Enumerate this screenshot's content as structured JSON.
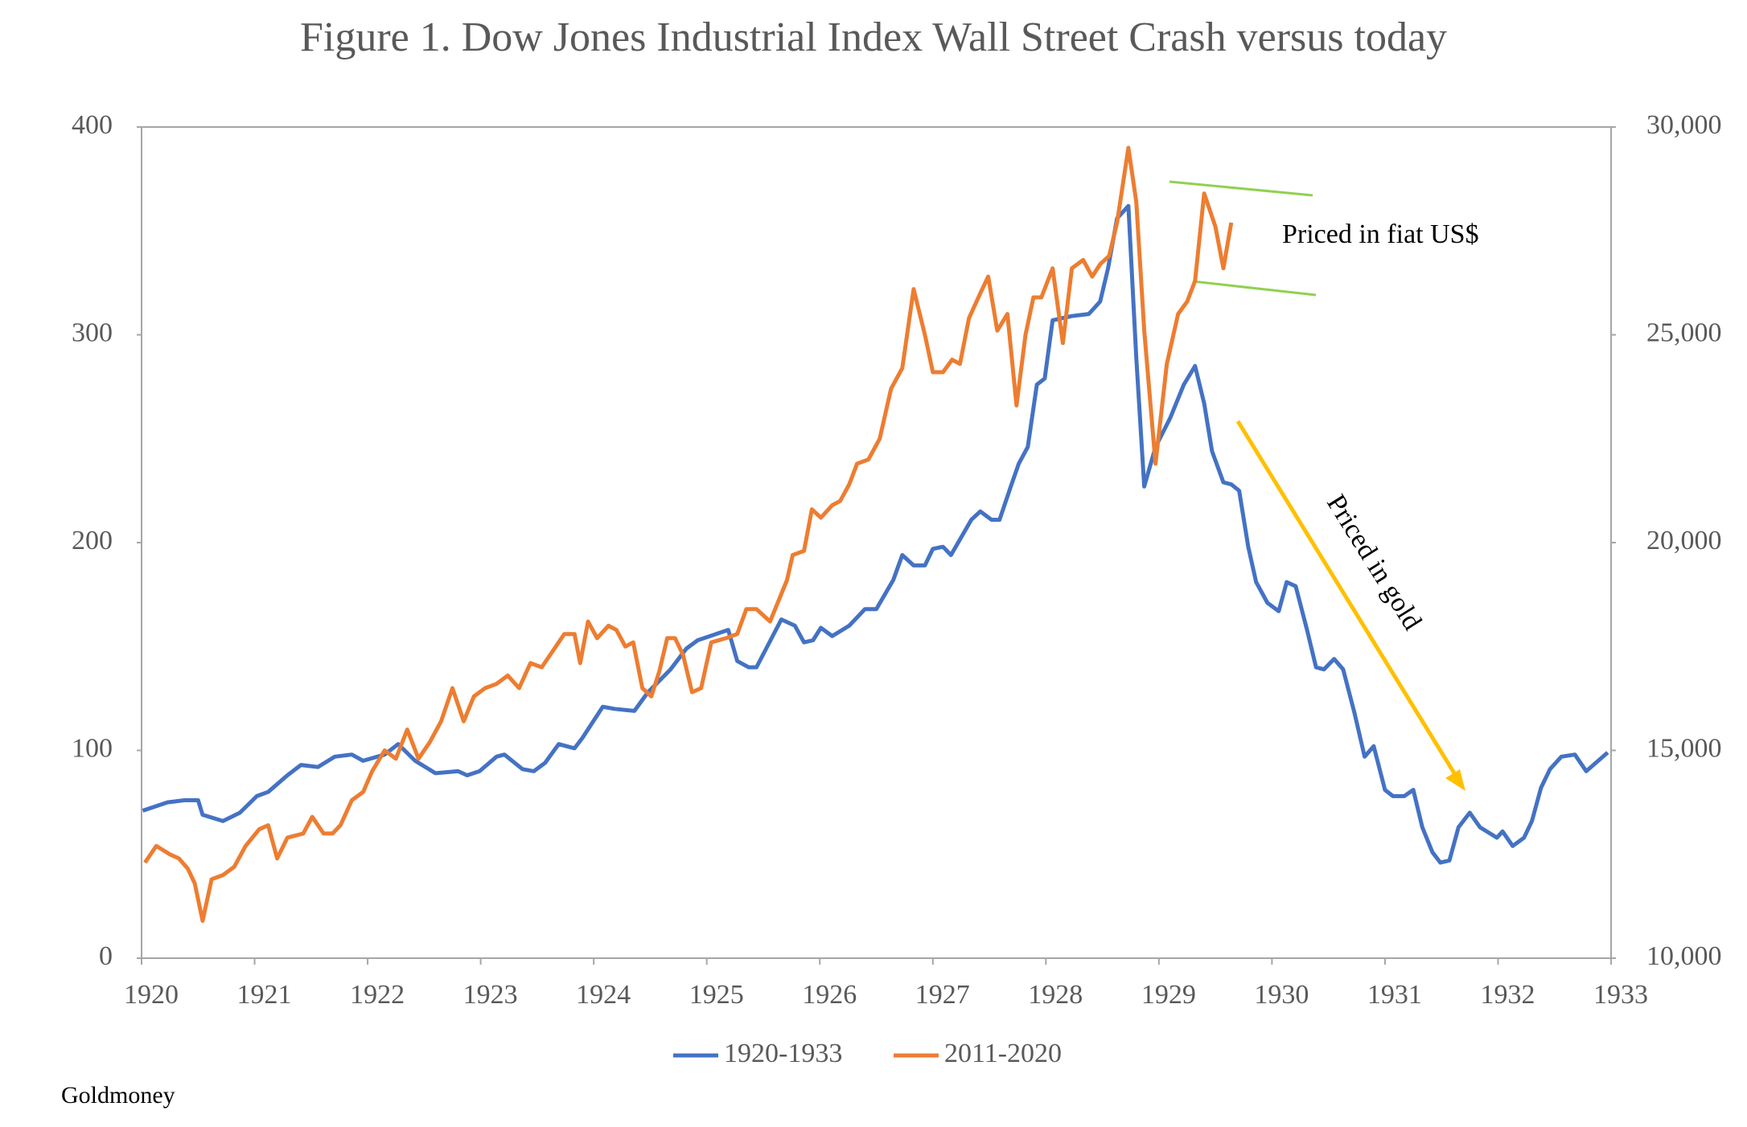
{
  "chart_data": {
    "type": "line",
    "title": "Figure 1. Dow Jones Industrial Index Wall Street Crash versus today",
    "xlim": [
      1920,
      1933
    ],
    "xticks": [
      1920,
      1921,
      1922,
      1923,
      1924,
      1925,
      1926,
      1927,
      1928,
      1929,
      1930,
      1931,
      1932,
      1933
    ],
    "ylim": [
      0,
      400
    ],
    "yticks": [
      0,
      100,
      200,
      300,
      400
    ],
    "y2lim": [
      10000,
      30000
    ],
    "y2ticks": [
      {
        "value": 10000,
        "label": "10,000"
      },
      {
        "value": 15000,
        "label": "15,000"
      },
      {
        "value": 20000,
        "label": "20,000"
      },
      {
        "value": 25000,
        "label": "25,000"
      },
      {
        "value": 30000,
        "label": "30,000"
      }
    ],
    "grid": false,
    "legend": "bottom",
    "series": [
      {
        "name": "1920-1933",
        "color": "#4472c4",
        "x": [
          1920.01,
          1920.23,
          1920.38,
          1920.5,
          1920.54,
          1920.72,
          1920.87,
          1921.02,
          1921.12,
          1921.29,
          1921.41,
          1921.56,
          1921.71,
          1921.86,
          1921.96,
          1922.15,
          1922.27,
          1922.42,
          1922.6,
          1922.8,
          1922.88,
          1922.99,
          1923.14,
          1923.21,
          1923.37,
          1923.47,
          1923.57,
          1923.69,
          1923.83,
          1923.9,
          1924.08,
          1924.18,
          1924.36,
          1924.48,
          1924.68,
          1924.82,
          1924.92,
          1925.19,
          1925.27,
          1925.37,
          1925.44,
          1925.66,
          1925.78,
          1925.86,
          1925.94,
          1926.01,
          1926.11,
          1926.26,
          1926.4,
          1926.5,
          1926.65,
          1926.73,
          1926.83,
          1926.93,
          1927.0,
          1927.09,
          1927.16,
          1927.34,
          1927.42,
          1927.52,
          1927.59,
          1927.69,
          1927.76,
          1927.84,
          1927.92,
          1927.99,
          1928.06,
          1928.23,
          1928.38,
          1928.48,
          1928.55,
          1928.63,
          1928.73,
          1928.8,
          1928.87,
          1928.97,
          1929.1,
          1929.22,
          1929.32,
          1929.4,
          1929.47,
          1929.57,
          1929.64,
          1929.71,
          1929.79,
          1929.86,
          1929.96,
          1930.06,
          1930.13,
          1930.21,
          1930.31,
          1930.39,
          1930.46,
          1930.55,
          1930.63,
          1930.73,
          1930.82,
          1930.9,
          1931.0,
          1931.07,
          1931.17,
          1931.25,
          1931.33,
          1931.42,
          1931.49,
          1931.57,
          1931.65,
          1931.75,
          1931.84,
          1931.99,
          1932.04,
          1932.13,
          1932.23,
          1932.3,
          1932.38,
          1932.46,
          1932.56,
          1932.68,
          1932.78,
          1932.97
        ],
        "values": [
          71,
          75,
          76,
          76,
          69,
          66,
          70,
          78,
          80,
          88,
          93,
          92,
          97,
          98,
          95,
          98,
          103,
          95,
          89,
          90,
          88,
          90,
          97,
          98,
          91,
          90,
          94,
          103,
          101,
          106,
          121,
          120,
          119,
          128,
          139,
          149,
          153,
          158,
          143,
          140,
          140,
          163,
          160,
          152,
          153,
          159,
          155,
          160,
          168,
          168,
          182,
          194,
          189,
          189,
          197,
          198,
          194,
          211,
          215,
          211,
          211,
          227,
          238,
          246,
          276,
          279,
          307,
          309,
          310,
          316,
          332,
          356,
          362,
          289,
          227,
          246,
          260,
          276,
          285,
          267,
          244,
          229,
          228,
          225,
          198,
          181,
          171,
          167,
          181,
          179,
          158,
          140,
          139,
          144,
          139,
          118,
          97,
          102,
          81,
          78,
          78,
          81,
          63,
          51,
          46,
          47,
          63,
          70,
          63,
          58,
          61,
          54,
          58,
          66,
          82,
          91,
          97,
          98,
          90,
          99
        ]
      },
      {
        "name": "2011-2020",
        "color": "#ed7d31",
        "axis": "y2",
        "x": [
          1920.03,
          1920.13,
          1920.25,
          1920.33,
          1920.41,
          1920.47,
          1920.54,
          1920.62,
          1920.72,
          1920.82,
          1920.92,
          1921.04,
          1921.12,
          1921.2,
          1921.29,
          1921.43,
          1921.51,
          1921.61,
          1921.69,
          1921.76,
          1921.86,
          1921.96,
          1922.04,
          1922.15,
          1922.25,
          1922.35,
          1922.45,
          1922.55,
          1922.65,
          1922.75,
          1922.85,
          1922.94,
          1923.04,
          1923.14,
          1923.24,
          1923.34,
          1923.44,
          1923.54,
          1923.64,
          1923.74,
          1923.83,
          1923.88,
          1923.95,
          1924.03,
          1924.13,
          1924.2,
          1924.28,
          1924.35,
          1924.43,
          1924.51,
          1924.58,
          1924.65,
          1924.72,
          1924.79,
          1924.87,
          1924.95,
          1925.04,
          1925.17,
          1925.27,
          1925.35,
          1925.44,
          1925.56,
          1925.71,
          1925.76,
          1925.86,
          1925.93,
          1926.01,
          1926.11,
          1926.18,
          1926.26,
          1926.33,
          1926.43,
          1926.53,
          1926.63,
          1926.73,
          1926.83,
          1926.93,
          1927.0,
          1927.09,
          1927.17,
          1927.24,
          1927.32,
          1927.42,
          1927.49,
          1927.57,
          1927.66,
          1927.74,
          1927.82,
          1927.89,
          1927.96,
          1928.06,
          1928.15,
          1928.23,
          1928.33,
          1928.41,
          1928.48,
          1928.56,
          1928.63,
          1928.73,
          1928.8,
          1928.87,
          1928.97,
          1929.07,
          1929.17,
          1929.25,
          1929.32,
          1929.4,
          1929.5,
          1929.57,
          1929.64
        ],
        "values": [
          12300,
          12700,
          12500,
          12400,
          12150,
          11800,
          10900,
          11900,
          12000,
          12200,
          12700,
          13100,
          13200,
          12400,
          12900,
          13000,
          13400,
          13000,
          13000,
          13200,
          13800,
          14000,
          14500,
          15000,
          14800,
          15500,
          14800,
          15200,
          15700,
          16500,
          15700,
          16300,
          16500,
          16600,
          16800,
          16500,
          17100,
          17000,
          17400,
          17800,
          17800,
          17100,
          18100,
          17700,
          18000,
          17900,
          17500,
          17600,
          16500,
          16300,
          16900,
          17700,
          17700,
          17300,
          16400,
          16500,
          17600,
          17700,
          17800,
          18400,
          18400,
          18100,
          19100,
          19700,
          19800,
          20800,
          20600,
          20900,
          21000,
          21400,
          21900,
          22000,
          22500,
          23700,
          24200,
          26100,
          25000,
          24100,
          24100,
          24400,
          24300,
          25400,
          26000,
          26400,
          25100,
          25500,
          23300,
          25000,
          25900,
          25900,
          26600,
          24800,
          26600,
          26800,
          26400,
          26700,
          26900,
          27700,
          29500,
          28200,
          25100,
          21900,
          24300,
          25500,
          25800,
          26300,
          28400,
          27600,
          26600,
          27700
        ]
      }
    ],
    "annotations": [
      "Priced in fiat US$",
      "Priced in gold"
    ],
    "source": "Goldmoney"
  }
}
